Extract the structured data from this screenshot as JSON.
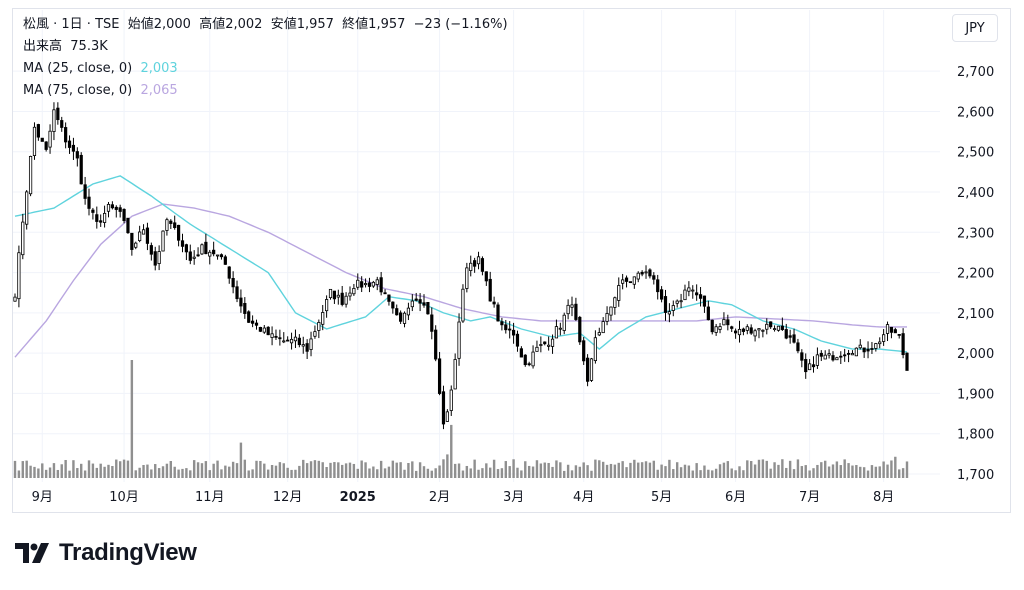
{
  "legend": {
    "title_line": "松風 · 1日 · TSE  始値2,000  高値2,002  安値1,957  終値1,957  −23 (−1.16%)",
    "volume_label": "出来高",
    "volume_value": "75.3K",
    "ma25_label": "MA (25, close, 0)",
    "ma25_value": "2,003",
    "ma75_label": "MA (75, close, 0)",
    "ma75_value": "2,065"
  },
  "currency": "JPY",
  "brand": "TradingView",
  "colors": {
    "up": "#ffffff",
    "down": "#000000",
    "wick": "#000000",
    "ma25": "#5fd3dd",
    "ma75": "#b9a6e0",
    "volume": "#8f8f8f",
    "grid": "#f0f3fa"
  },
  "chart_data": {
    "type": "candlestick",
    "title": "松風 · 1日 · TSE",
    "currency": "JPY",
    "y_ticks": [
      1700,
      1800,
      1900,
      2000,
      2100,
      2200,
      2300,
      2400,
      2500,
      2600,
      2700
    ],
    "y_tick_labels": [
      "1,700",
      "1,800",
      "1,900",
      "2,000",
      "2,100",
      "2,200",
      "2,300",
      "2,400",
      "2,500",
      "2,600",
      "2,700"
    ],
    "ylim": [
      1690,
      2760
    ],
    "x_tick_labels": [
      "9月",
      "10月",
      "11月",
      "12月",
      "2025",
      "2月",
      "3月",
      "4月",
      "5月",
      "6月",
      "7月",
      "8月"
    ],
    "x_tick_index": [
      7,
      28,
      50,
      70,
      88,
      109,
      128,
      146,
      166,
      185,
      204,
      223
    ],
    "last_bar": {
      "open": 2000,
      "high": 2002,
      "low": 1957,
      "close": 1957,
      "change": -23,
      "change_pct": -1.16,
      "volume": "75.3K"
    },
    "ma25_last": 2003,
    "ma75_last": 2065,
    "anchors": [
      {
        "i": 0,
        "c": 2150
      },
      {
        "i": 2,
        "c": 2330
      },
      {
        "i": 5,
        "c": 2560
      },
      {
        "i": 8,
        "c": 2500
      },
      {
        "i": 10,
        "c": 2600
      },
      {
        "i": 13,
        "c": 2530
      },
      {
        "i": 16,
        "c": 2480
      },
      {
        "i": 18,
        "c": 2380
      },
      {
        "i": 21,
        "c": 2320
      },
      {
        "i": 24,
        "c": 2360
      },
      {
        "i": 27,
        "c": 2350
      },
      {
        "i": 30,
        "c": 2260
      },
      {
        "i": 33,
        "c": 2310
      },
      {
        "i": 36,
        "c": 2220
      },
      {
        "i": 39,
        "c": 2330
      },
      {
        "i": 42,
        "c": 2290
      },
      {
        "i": 45,
        "c": 2230
      },
      {
        "i": 48,
        "c": 2260
      },
      {
        "i": 51,
        "c": 2250
      },
      {
        "i": 54,
        "c": 2220
      },
      {
        "i": 57,
        "c": 2140
      },
      {
        "i": 60,
        "c": 2080
      },
      {
        "i": 63,
        "c": 2060
      },
      {
        "i": 66,
        "c": 2040
      },
      {
        "i": 69,
        "c": 2030
      },
      {
        "i": 72,
        "c": 2030
      },
      {
        "i": 75,
        "c": 2010
      },
      {
        "i": 78,
        "c": 2080
      },
      {
        "i": 81,
        "c": 2150
      },
      {
        "i": 84,
        "c": 2130
      },
      {
        "i": 87,
        "c": 2170
      },
      {
        "i": 90,
        "c": 2170
      },
      {
        "i": 93,
        "c": 2180
      },
      {
        "i": 96,
        "c": 2120
      },
      {
        "i": 99,
        "c": 2070
      },
      {
        "i": 102,
        "c": 2140
      },
      {
        "i": 105,
        "c": 2130
      },
      {
        "i": 107,
        "c": 2060
      },
      {
        "i": 110,
        "c": 1820
      },
      {
        "i": 112,
        "c": 1900
      },
      {
        "i": 114,
        "c": 2080
      },
      {
        "i": 116,
        "c": 2220
      },
      {
        "i": 119,
        "c": 2230
      },
      {
        "i": 122,
        "c": 2140
      },
      {
        "i": 125,
        "c": 2060
      },
      {
        "i": 128,
        "c": 2050
      },
      {
        "i": 131,
        "c": 1970
      },
      {
        "i": 134,
        "c": 2010
      },
      {
        "i": 137,
        "c": 2030
      },
      {
        "i": 140,
        "c": 2070
      },
      {
        "i": 143,
        "c": 2130
      },
      {
        "i": 145,
        "c": 2020
      },
      {
        "i": 147,
        "c": 1920
      },
      {
        "i": 149,
        "c": 2040
      },
      {
        "i": 152,
        "c": 2090
      },
      {
        "i": 155,
        "c": 2170
      },
      {
        "i": 158,
        "c": 2180
      },
      {
        "i": 161,
        "c": 2200
      },
      {
        "i": 164,
        "c": 2190
      },
      {
        "i": 167,
        "c": 2090
      },
      {
        "i": 170,
        "c": 2120
      },
      {
        "i": 173,
        "c": 2170
      },
      {
        "i": 176,
        "c": 2130
      },
      {
        "i": 179,
        "c": 2060
      },
      {
        "i": 182,
        "c": 2080
      },
      {
        "i": 185,
        "c": 2050
      },
      {
        "i": 188,
        "c": 2060
      },
      {
        "i": 191,
        "c": 2060
      },
      {
        "i": 194,
        "c": 2070
      },
      {
        "i": 197,
        "c": 2060
      },
      {
        "i": 200,
        "c": 2020
      },
      {
        "i": 203,
        "c": 1950
      },
      {
        "i": 206,
        "c": 1990
      },
      {
        "i": 209,
        "c": 1990
      },
      {
        "i": 212,
        "c": 2000
      },
      {
        "i": 215,
        "c": 2010
      },
      {
        "i": 218,
        "c": 2010
      },
      {
        "i": 221,
        "c": 2020
      },
      {
        "i": 224,
        "c": 2060
      },
      {
        "i": 227,
        "c": 2040
      },
      {
        "i": 229,
        "c": 1957
      }
    ],
    "volume_spikes": [
      {
        "i": 30,
        "rel": 1.0
      },
      {
        "i": 58,
        "rel": 0.3
      },
      {
        "i": 112,
        "rel": 0.45
      },
      {
        "i": 111,
        "rel": 0.2
      },
      {
        "i": 226,
        "rel": 0.18
      }
    ],
    "ma25_anchors": [
      {
        "i": 0,
        "v": 2340
      },
      {
        "i": 10,
        "v": 2360
      },
      {
        "i": 20,
        "v": 2420
      },
      {
        "i": 27,
        "v": 2440
      },
      {
        "i": 35,
        "v": 2390
      },
      {
        "i": 45,
        "v": 2320
      },
      {
        "i": 55,
        "v": 2260
      },
      {
        "i": 65,
        "v": 2200
      },
      {
        "i": 72,
        "v": 2100
      },
      {
        "i": 80,
        "v": 2060
      },
      {
        "i": 90,
        "v": 2090
      },
      {
        "i": 96,
        "v": 2140
      },
      {
        "i": 103,
        "v": 2130
      },
      {
        "i": 110,
        "v": 2100
      },
      {
        "i": 117,
        "v": 2080
      },
      {
        "i": 122,
        "v": 2090
      },
      {
        "i": 130,
        "v": 2060
      },
      {
        "i": 138,
        "v": 2040
      },
      {
        "i": 145,
        "v": 2050
      },
      {
        "i": 150,
        "v": 2010
      },
      {
        "i": 155,
        "v": 2050
      },
      {
        "i": 162,
        "v": 2090
      },
      {
        "i": 170,
        "v": 2110
      },
      {
        "i": 178,
        "v": 2130
      },
      {
        "i": 184,
        "v": 2120
      },
      {
        "i": 192,
        "v": 2080
      },
      {
        "i": 200,
        "v": 2060
      },
      {
        "i": 207,
        "v": 2030
      },
      {
        "i": 215,
        "v": 2010
      },
      {
        "i": 222,
        "v": 2010
      },
      {
        "i": 229,
        "v": 2003
      }
    ],
    "ma75_anchors": [
      {
        "i": 0,
        "v": 1990
      },
      {
        "i": 8,
        "v": 2080
      },
      {
        "i": 15,
        "v": 2180
      },
      {
        "i": 22,
        "v": 2270
      },
      {
        "i": 30,
        "v": 2340
      },
      {
        "i": 38,
        "v": 2370
      },
      {
        "i": 46,
        "v": 2360
      },
      {
        "i": 55,
        "v": 2340
      },
      {
        "i": 65,
        "v": 2300
      },
      {
        "i": 75,
        "v": 2250
      },
      {
        "i": 85,
        "v": 2200
      },
      {
        "i": 95,
        "v": 2160
      },
      {
        "i": 105,
        "v": 2140
      },
      {
        "i": 115,
        "v": 2110
      },
      {
        "i": 125,
        "v": 2090
      },
      {
        "i": 135,
        "v": 2080
      },
      {
        "i": 145,
        "v": 2080
      },
      {
        "i": 155,
        "v": 2080
      },
      {
        "i": 165,
        "v": 2080
      },
      {
        "i": 175,
        "v": 2080
      },
      {
        "i": 185,
        "v": 2090
      },
      {
        "i": 195,
        "v": 2085
      },
      {
        "i": 205,
        "v": 2080
      },
      {
        "i": 215,
        "v": 2070
      },
      {
        "i": 222,
        "v": 2065
      },
      {
        "i": 229,
        "v": 2065
      }
    ],
    "bar_count": 230
  }
}
